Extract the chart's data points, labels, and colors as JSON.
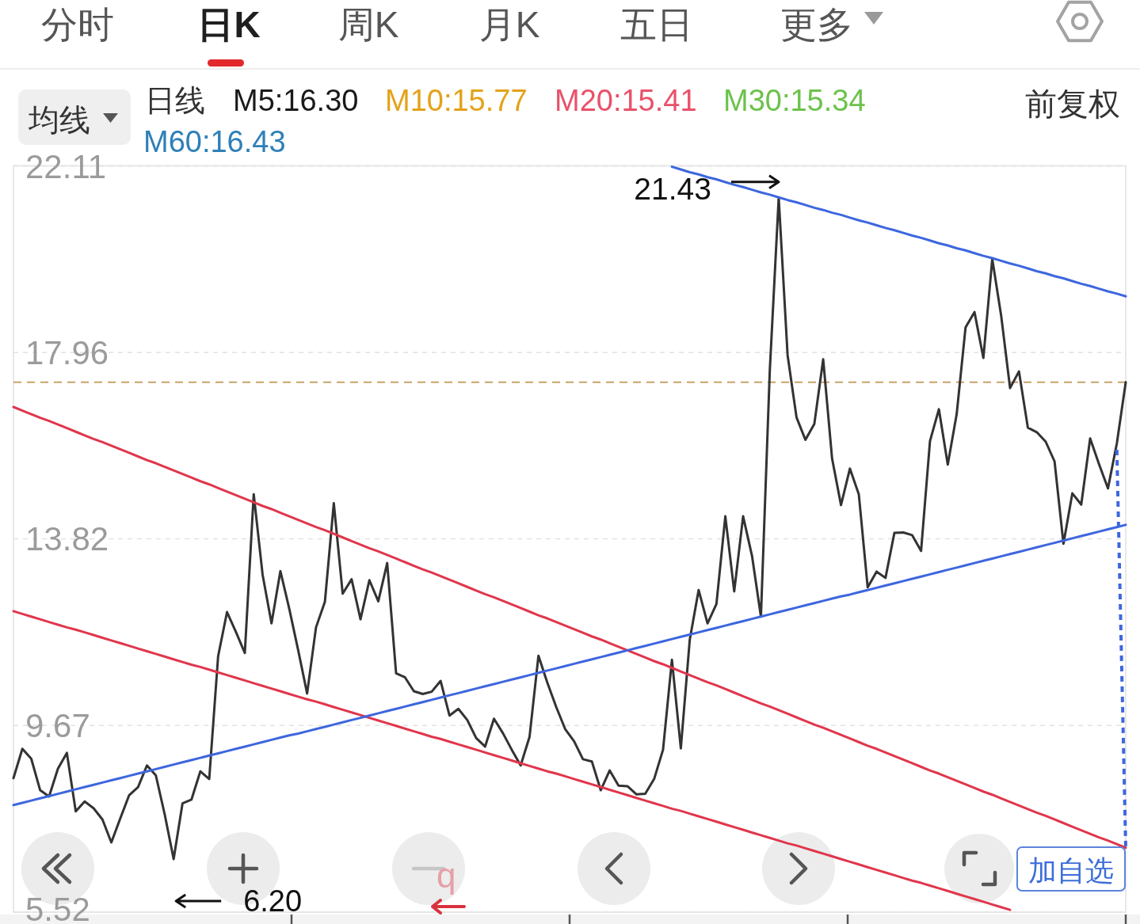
{
  "chart_data": {
    "type": "line",
    "annotations": [
      "分时",
      "日K",
      "周K",
      "月K",
      "五日",
      "更多",
      "均线",
      "日线",
      "M5:16.30",
      "M10:15.77",
      "M20:15.41",
      "M30:15.34",
      "M60:16.43",
      "前复权",
      "加自选",
      "q",
      "21.43",
      "6.20"
    ],
    "categories": [
      null,
      null,
      null,
      null,
      null,
      null,
      null,
      null,
      null,
      null,
      null,
      null,
      null,
      null,
      null,
      null,
      null,
      null,
      null,
      null,
      null,
      null,
      null,
      null,
      null,
      null,
      null,
      null,
      null,
      null,
      null,
      null,
      null,
      null,
      null,
      null,
      null,
      null,
      null,
      null,
      null,
      null,
      null,
      null,
      null,
      null,
      null,
      null,
      null,
      null,
      null,
      null,
      null,
      null,
      null,
      null,
      null,
      null,
      null,
      null,
      null,
      null,
      null,
      null,
      null,
      null,
      null,
      null,
      null,
      null,
      null,
      null,
      null,
      null,
      null,
      null,
      null,
      null,
      null,
      null,
      null,
      null,
      null,
      null,
      null,
      null,
      null,
      null,
      null,
      null,
      null,
      null,
      null,
      null,
      null,
      null,
      null,
      null,
      null,
      null,
      null,
      null,
      null,
      null,
      null,
      null,
      null,
      null,
      null,
      null,
      null,
      null,
      null,
      null,
      null,
      null,
      null,
      null,
      null,
      null,
      null,
      null,
      null,
      null,
      null,
      null
    ],
    "ylim": [
      5.52,
      22.11
    ],
    "yticks": [
      22.11,
      17.96,
      13.82,
      9.67,
      5.52
    ],
    "grid": "y",
    "tick_labels": "y",
    "ref_lines": [
      {
        "axis": "y",
        "value": 17.3,
        "color": "#c8a26b",
        "line_style": "dashed"
      }
    ],
    "series": [
      {
        "color": "#333333",
        "values": [
          8.5,
          9.15,
          8.93,
          8.23,
          8.09,
          8.71,
          9.06,
          7.76,
          7.98,
          7.83,
          7.58,
          7.07,
          7.6,
          8.12,
          8.3,
          8.78,
          8.56,
          7.69,
          6.7,
          7.94,
          8.02,
          8.65,
          8.48,
          11.21,
          12.19,
          11.75,
          11.28,
          14.81,
          13.02,
          11.94,
          13.1,
          12.26,
          11.34,
          10.38,
          11.85,
          12.42,
          14.61,
          12.6,
          12.92,
          12.03,
          12.9,
          12.43,
          13.28,
          10.83,
          10.74,
          10.43,
          10.37,
          10.42,
          10.66,
          9.89,
          10.04,
          9.79,
          9.39,
          9.2,
          9.82,
          9.5,
          9.13,
          8.78,
          9.42,
          11.22,
          10.62,
          10.08,
          9.59,
          9.32,
          8.92,
          8.87,
          8.23,
          8.67,
          8.33,
          8.32,
          8.14,
          8.15,
          8.48,
          9.13,
          11.13,
          9.16,
          11.57,
          12.68,
          11.94,
          12.37,
          14.32,
          12.65,
          14.32,
          13.44,
          12.09,
          17.57,
          21.4,
          17.9,
          16.52,
          16.02,
          16.37,
          17.81,
          15.6,
          14.57,
          15.38,
          14.81,
          12.74,
          13.09,
          12.95,
          13.95,
          13.96,
          13.9,
          13.55,
          15.99,
          16.7,
          15.47,
          16.59,
          18.52,
          18.86,
          17.84,
          20.04,
          18.78,
          17.17,
          17.54,
          16.29,
          16.19,
          15.98,
          15.54,
          13.71,
          14.83,
          14.58,
          16.05,
          15.48,
          14.94,
          15.94,
          17.3
        ]
      },
      {
        "color": "#e0364c",
        "values": [
          16.75,
          16.67,
          16.59,
          16.51,
          16.44,
          16.36,
          16.28,
          16.2,
          16.12,
          16.04,
          15.97,
          15.89,
          15.81,
          15.73,
          15.65,
          15.57,
          15.5,
          15.42,
          15.34,
          15.26,
          15.18,
          15.1,
          15.03,
          14.95,
          14.87,
          14.79,
          14.71,
          14.63,
          14.55,
          14.48,
          14.4,
          14.32,
          14.24,
          14.16,
          14.08,
          14.01,
          13.93,
          13.85,
          13.77,
          13.69,
          13.61,
          13.54,
          13.46,
          13.38,
          13.3,
          13.22,
          13.14,
          13.07,
          12.99,
          12.91,
          12.83,
          12.75,
          12.67,
          12.59,
          12.52,
          12.44,
          12.36,
          12.28,
          12.2,
          12.12,
          12.05,
          11.97,
          11.89,
          11.81,
          11.73,
          11.65,
          11.58,
          11.5,
          11.42,
          11.34,
          11.26,
          11.18,
          11.1,
          11.03,
          10.95,
          10.87,
          10.79,
          10.71,
          10.63,
          10.56,
          10.48,
          10.4,
          10.32,
          10.24,
          10.16,
          10.09,
          10.01,
          9.93,
          9.85,
          9.77,
          9.69,
          9.62,
          9.54,
          9.46,
          9.38,
          9.3,
          9.22,
          9.15,
          9.07,
          8.99,
          8.91,
          8.83,
          8.75,
          8.67,
          8.6,
          8.52,
          8.44,
          8.36,
          8.28,
          8.2,
          8.13,
          8.05,
          7.97,
          7.89,
          7.81,
          7.73,
          7.66,
          7.58,
          7.5,
          7.42,
          7.34,
          7.26,
          7.18,
          7.11,
          7.03,
          6.95
        ]
      },
      {
        "color": "#e0364c",
        "values": [
          12.21,
          12.15,
          12.09,
          12.03,
          11.97,
          11.91,
          11.85,
          11.8,
          11.74,
          11.68,
          11.62,
          11.56,
          11.5,
          11.44,
          11.38,
          11.32,
          11.26,
          11.2,
          11.14,
          11.08,
          11.02,
          10.97,
          10.91,
          10.85,
          10.79,
          10.73,
          10.67,
          10.61,
          10.55,
          10.49,
          10.43,
          10.37,
          10.31,
          10.25,
          10.2,
          10.14,
          10.08,
          10.02,
          9.96,
          9.9,
          9.84,
          9.78,
          9.72,
          9.66,
          9.6,
          9.54,
          9.48,
          9.42,
          9.37,
          9.31,
          9.25,
          9.19,
          9.13,
          9.07,
          9.01,
          8.95,
          8.89,
          8.83,
          8.77,
          8.71,
          8.65,
          8.6,
          8.54,
          8.48,
          8.42,
          8.36,
          8.3,
          8.24,
          8.18,
          8.12,
          8.06,
          8.0,
          7.94,
          7.88,
          7.82,
          7.77,
          7.71,
          7.65,
          7.59,
          7.53,
          7.47,
          7.41,
          7.35,
          7.29,
          7.23,
          7.17,
          7.11,
          7.05,
          7.0,
          6.94,
          6.88,
          6.82,
          6.76,
          6.7,
          6.64,
          6.58,
          6.52,
          6.46,
          6.4,
          6.34,
          6.28,
          6.22,
          6.17,
          6.11,
          6.05,
          5.99,
          5.93,
          5.87,
          5.81,
          5.75,
          5.69,
          5.63,
          5.57,
          null,
          null,
          null,
          null,
          null,
          null,
          null,
          null,
          null,
          null,
          null,
          null,
          null
        ]
      },
      {
        "color": "#3d66df",
        "values": [
          7.9,
          7.95,
          8.0,
          8.05,
          8.1,
          8.15,
          8.2,
          8.25,
          8.3,
          8.35,
          8.4,
          8.45,
          8.5,
          8.55,
          8.6,
          8.65,
          8.7,
          8.75,
          8.8,
          8.85,
          8.9,
          8.95,
          9.0,
          9.05,
          9.1,
          9.15,
          9.2,
          9.25,
          9.3,
          9.35,
          9.4,
          9.45,
          9.49,
          9.54,
          9.59,
          9.64,
          9.69,
          9.74,
          9.79,
          9.84,
          9.89,
          9.94,
          9.99,
          10.04,
          10.09,
          10.14,
          10.19,
          10.24,
          10.29,
          10.34,
          10.39,
          10.44,
          10.49,
          10.54,
          10.59,
          10.64,
          10.69,
          10.74,
          10.79,
          10.84,
          10.89,
          10.94,
          10.99,
          11.04,
          11.09,
          11.14,
          11.19,
          11.24,
          11.29,
          11.34,
          11.39,
          11.44,
          11.49,
          11.54,
          11.59,
          11.64,
          11.69,
          11.74,
          11.79,
          11.84,
          11.89,
          11.94,
          11.99,
          12.04,
          12.09,
          12.14,
          12.19,
          12.24,
          12.29,
          12.34,
          12.39,
          12.44,
          12.49,
          12.54,
          12.58,
          12.63,
          12.68,
          12.73,
          12.78,
          12.83,
          12.88,
          12.93,
          12.98,
          13.03,
          13.08,
          13.13,
          13.18,
          13.23,
          13.28,
          13.33,
          13.38,
          13.43,
          13.48,
          13.53,
          13.58,
          13.63,
          13.68,
          13.73,
          13.78,
          13.83,
          13.88,
          13.93,
          13.98,
          14.03,
          14.08,
          14.13
        ]
      },
      {
        "color": "#3d66df",
        "values": [
          null,
          null,
          null,
          null,
          null,
          null,
          null,
          null,
          null,
          null,
          null,
          null,
          null,
          null,
          null,
          null,
          null,
          null,
          null,
          null,
          null,
          null,
          null,
          null,
          null,
          null,
          null,
          null,
          null,
          null,
          null,
          null,
          null,
          null,
          null,
          null,
          null,
          null,
          null,
          null,
          null,
          null,
          null,
          null,
          null,
          null,
          null,
          null,
          null,
          null,
          null,
          null,
          null,
          null,
          null,
          null,
          null,
          null,
          null,
          null,
          null,
          null,
          null,
          null,
          null,
          null,
          null,
          null,
          null,
          null,
          null,
          null,
          null,
          null,
          22.09,
          22.03,
          21.97,
          21.92,
          21.86,
          21.81,
          21.75,
          21.69,
          21.64,
          21.58,
          21.52,
          21.47,
          21.41,
          21.35,
          21.3,
          21.24,
          21.18,
          21.13,
          21.07,
          21.02,
          20.96,
          20.9,
          20.85,
          20.79,
          20.73,
          20.68,
          20.62,
          20.56,
          20.51,
          20.45,
          20.39,
          20.34,
          20.28,
          20.23,
          20.17,
          20.11,
          20.06,
          20.0,
          19.94,
          19.89,
          19.83,
          19.77,
          19.72,
          19.66,
          19.61,
          19.55,
          19.49,
          19.44,
          19.38,
          19.32,
          19.27,
          19.21
        ]
      },
      {
        "color": "#3d66df",
        "line_style": "dotted",
        "values": [
          null,
          null,
          null,
          null,
          null,
          null,
          null,
          null,
          null,
          null,
          null,
          null,
          null,
          null,
          null,
          null,
          null,
          null,
          null,
          null,
          null,
          null,
          null,
          null,
          null,
          null,
          null,
          null,
          null,
          null,
          null,
          null,
          null,
          null,
          null,
          null,
          null,
          null,
          null,
          null,
          null,
          null,
          null,
          null,
          null,
          null,
          null,
          null,
          null,
          null,
          null,
          null,
          null,
          null,
          null,
          null,
          null,
          null,
          null,
          null,
          null,
          null,
          null,
          null,
          null,
          null,
          null,
          null,
          null,
          null,
          null,
          null,
          null,
          null,
          null,
          null,
          null,
          null,
          null,
          null,
          null,
          null,
          null,
          null,
          null,
          null,
          null,
          null,
          null,
          null,
          null,
          null,
          null,
          null,
          null,
          null,
          null,
          null,
          null,
          null,
          null,
          null,
          null,
          null,
          null,
          null,
          null,
          null,
          null,
          null,
          null,
          null,
          null,
          null,
          null,
          null,
          null,
          null,
          null,
          null,
          null,
          null,
          null,
          null,
          15.8,
          6.95
        ]
      }
    ]
  }
}
